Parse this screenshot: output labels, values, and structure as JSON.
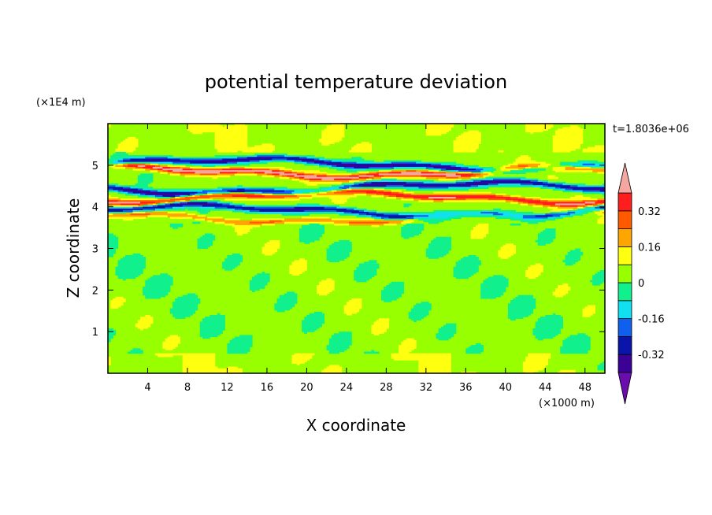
{
  "chart_data": {
    "type": "heatmap",
    "title": "potential temperature deviation",
    "time_label": "t=1.8036e+06",
    "xlabel": "X coordinate",
    "ylabel": "Z coordinate",
    "x_unit": "(×1000 m)",
    "y_unit": "(×1E4 m)",
    "xlim": [
      0,
      50
    ],
    "ylim": [
      0,
      6
    ],
    "x_ticks": [
      "4",
      "8",
      "12",
      "16",
      "20",
      "24",
      "28",
      "32",
      "36",
      "40",
      "44",
      "48"
    ],
    "y_ticks": [
      "1",
      "2",
      "3",
      "4",
      "5"
    ],
    "colorbar": {
      "labels": [
        "0.32",
        "0.16",
        "0",
        "-0.16",
        "-0.32"
      ],
      "levels": [
        -0.4,
        -0.32,
        -0.24,
        -0.16,
        -0.08,
        0,
        0.08,
        0.16,
        0.24,
        0.32,
        0.4
      ],
      "colors": [
        "#6a0dad",
        "#3b0096",
        "#0a14a8",
        "#1060f0",
        "#10e0f0",
        "#10f08c",
        "#98ff00",
        "#ffff10",
        "#ffa500",
        "#ff5a00",
        "#ff1e1e",
        "#f4a6a0"
      ]
    },
    "bands": [
      {
        "z": 5.02,
        "value": -0.38,
        "note": "upper strong negative band"
      },
      {
        "z": 4.85,
        "value": 0.4,
        "note": "warm layer"
      },
      {
        "z": 4.45,
        "value": -0.38,
        "note": "middle strong negative band"
      },
      {
        "z": 4.22,
        "value": 0.36,
        "note": "warm layer"
      },
      {
        "z": 3.9,
        "value": -0.36,
        "note": "lower strong negative band"
      },
      {
        "z": 3.75,
        "value": 0.2,
        "note": "weak warm layer"
      }
    ]
  }
}
